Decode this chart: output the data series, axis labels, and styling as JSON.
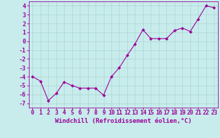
{
  "x": [
    0,
    1,
    2,
    3,
    4,
    5,
    6,
    7,
    8,
    9,
    10,
    11,
    12,
    13,
    14,
    15,
    16,
    17,
    18,
    19,
    20,
    21,
    22,
    23
  ],
  "y": [
    -4,
    -4.5,
    -6.7,
    -5.9,
    -4.6,
    -5.0,
    -5.3,
    -5.3,
    -5.3,
    -6.1,
    -4.0,
    -3.0,
    -1.6,
    -0.3,
    1.3,
    0.3,
    0.3,
    0.3,
    1.2,
    1.5,
    1.1,
    2.5,
    4.0,
    3.8
  ],
  "line_color": "#990099",
  "marker": "D",
  "marker_size": 2.2,
  "bg_color": "#c8ecec",
  "grid_color": "#b0d8d8",
  "xlabel": "Windchill (Refroidissement éolien,°C)",
  "xlabel_fontsize": 6.5,
  "xtick_labels": [
    "0",
    "1",
    "2",
    "3",
    "4",
    "5",
    "6",
    "7",
    "8",
    "9",
    "10",
    "11",
    "12",
    "13",
    "14",
    "15",
    "16",
    "17",
    "18",
    "19",
    "20",
    "21",
    "22",
    "23"
  ],
  "ytick_values": [
    -7,
    -6,
    -5,
    -4,
    -3,
    -2,
    -1,
    0,
    1,
    2,
    3,
    4
  ],
  "xlim": [
    -0.5,
    23.5
  ],
  "ylim": [
    -7.5,
    4.5
  ],
  "tick_color": "#990099",
  "tick_fontsize": 6.0,
  "border_color": "#990099"
}
